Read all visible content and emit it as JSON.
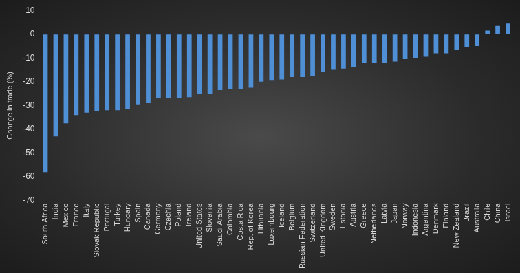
{
  "chart_data": {
    "type": "bar",
    "y_label": "Change in trade (%)",
    "categories": [
      "South Africa",
      "India",
      "Mexico",
      "France",
      "Italy",
      "Slovak Republic",
      "Portugal",
      "Turkey",
      "Hungary",
      "Spain",
      "Canada",
      "Germany",
      "Czechia",
      "Poland",
      "Ireland",
      "United States",
      "Slovenia",
      "Saudi Arabia",
      "Colombia",
      "Costa Rica",
      "Rep. of Korea",
      "Lithuania",
      "Luxembourg",
      "Iceland",
      "Belgium",
      "Russian Federation",
      "Switzerland",
      "United Kingdom",
      "Sweden",
      "Estonia",
      "Austria",
      "Greece",
      "Netherlands",
      "Latvia",
      "Japan",
      "Norway",
      "Indonesia",
      "Argentina",
      "Denmark",
      "Finland",
      "New Zealand",
      "Brazil",
      "Australia",
      "Chile",
      "China",
      "Israel"
    ],
    "values": [
      -58,
      -43,
      -37.5,
      -34,
      -33,
      -32.5,
      -32,
      -32,
      -31.5,
      -29.5,
      -29,
      -27,
      -27,
      -27,
      -26.5,
      -25,
      -25,
      -23.5,
      -23,
      -23,
      -22.5,
      -20,
      -19.5,
      -19,
      -18,
      -18,
      -17.5,
      -16,
      -15,
      -14.5,
      -14,
      -12,
      -12,
      -12,
      -11.5,
      -10.5,
      -10,
      -9.5,
      -8,
      -8,
      -6.5,
      -5.5,
      -5,
      1.5,
      3.5,
      4.5
    ],
    "color": "#4f8fd6",
    "ylim": [
      -70,
      10
    ],
    "yticks": [
      -70,
      -60,
      -50,
      -40,
      -30,
      -20,
      -10,
      0,
      10
    ],
    "grid": false
  }
}
